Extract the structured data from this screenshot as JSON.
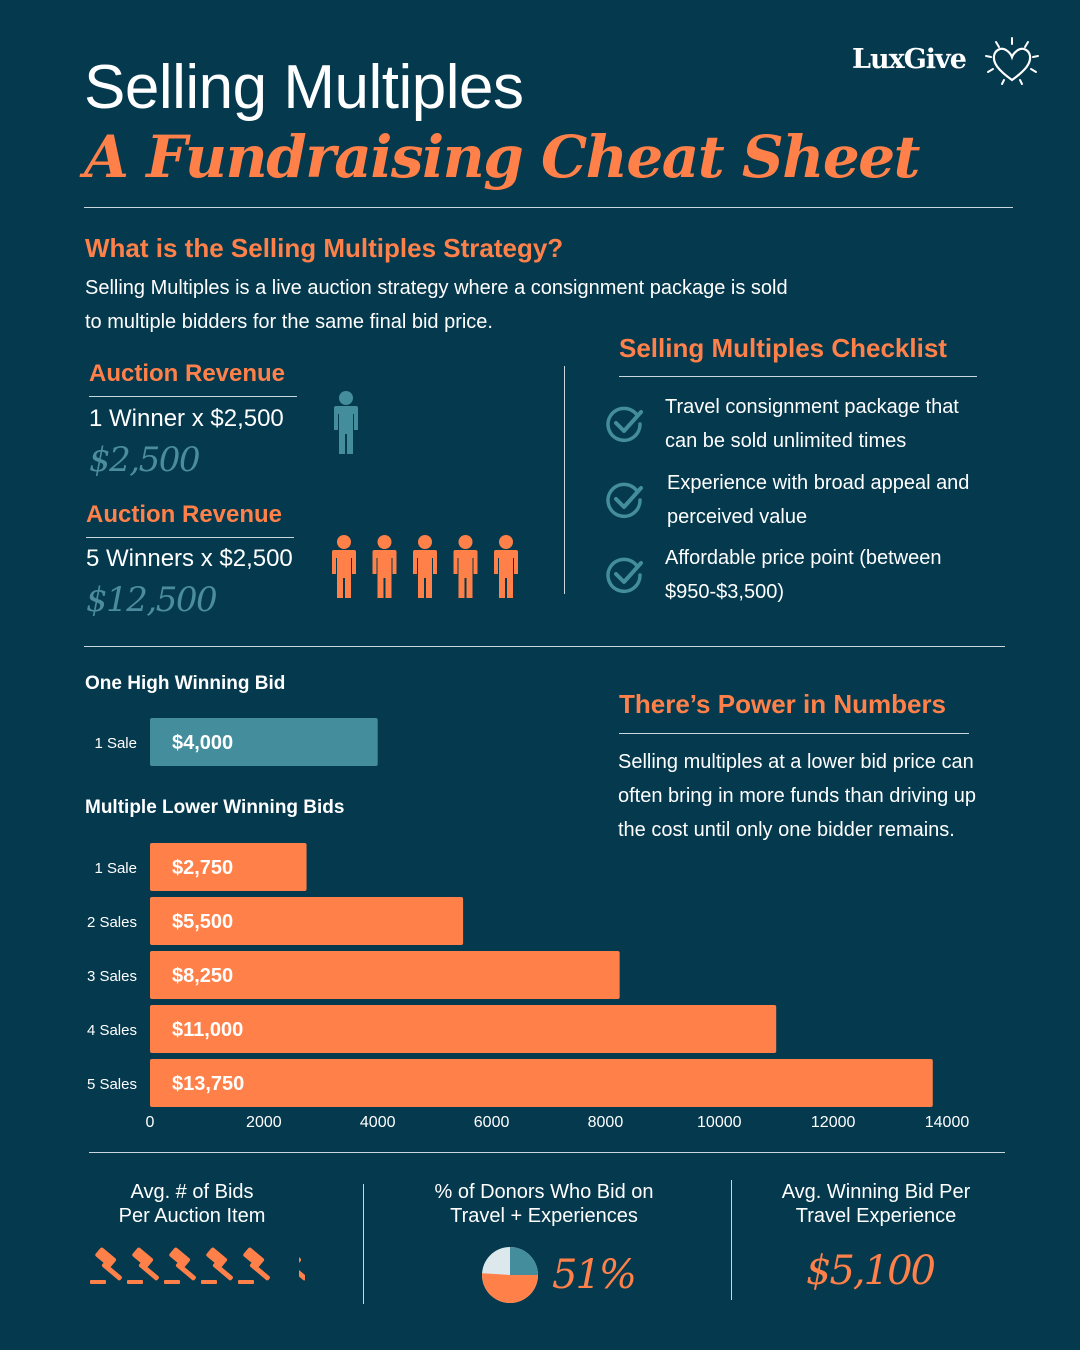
{
  "header": {
    "title_line1": "Selling Multiples",
    "title_line2": "A Fundraising Cheat Sheet",
    "logo_text": "LuxGive"
  },
  "strategy": {
    "heading": "What is the Selling Multiples Strategy?",
    "line1": "Selling Multiples is a live auction strategy where a consignment package is sold",
    "line2": "to multiple bidders for the same final bid price."
  },
  "revenue": {
    "single": {
      "title": "Auction Revenue",
      "equation": "1 Winner x $2,500",
      "total": "$2,500",
      "people": 1
    },
    "multiple": {
      "title": "Auction Revenue",
      "equation": "5 Winners x $2,500",
      "total": "$12,500",
      "people": 5
    }
  },
  "checklist": {
    "heading": "Selling Multiples Checklist",
    "items": [
      {
        "line1": "Travel consignment package that",
        "line2": "can be sold unlimited times"
      },
      {
        "line1": "Experience with broad appeal and",
        "line2": "perceived value"
      },
      {
        "line1": "Affordable price point (between",
        "line2": "$950-$3,500)"
      }
    ]
  },
  "power": {
    "heading": "There’s Power in Numbers",
    "line1": "Selling multiples at a lower bid price can",
    "line2": "often bring in more funds than driving up",
    "line3": "the cost until only one bidder remains."
  },
  "chart_data": {
    "type": "bar",
    "orientation": "horizontal",
    "xlim": [
      0,
      14000
    ],
    "x_ticks": [
      "0",
      "2000",
      "4000",
      "6000",
      "8000",
      "10000",
      "12000",
      "14000"
    ],
    "groups": [
      {
        "heading": "One High Winning Bid",
        "color": "#438d9d",
        "categories": [
          "1 Sale"
        ],
        "values": [
          4000
        ],
        "labels": [
          "$4,000"
        ]
      },
      {
        "heading": "Multiple Lower Winning Bids",
        "color": "#ff8149",
        "categories": [
          "1 Sale",
          "2 Sales",
          "3 Sales",
          "4 Sales",
          "5 Sales"
        ],
        "values": [
          2750,
          5500,
          8250,
          11000,
          13750
        ],
        "labels": [
          "$2,750",
          "$5,500",
          "$8,250",
          "$11,000",
          "$13,750"
        ]
      }
    ]
  },
  "stats": {
    "bids": {
      "line1": "Avg. # of Bids",
      "line2": "Per Auction Item",
      "gavel_count": 5.5
    },
    "donors": {
      "line1": "% of Donors Who Bid on",
      "line2": "Travel + Experiences",
      "value": "51%",
      "percent": 51
    },
    "winning": {
      "line1": "Avg. Winning Bid Per",
      "line2": "Travel Experience",
      "value": "$5,100"
    }
  },
  "colors": {
    "background": "#04394e",
    "accent": "#ff8149",
    "teal": "#438d9d",
    "rule": "#c9d6db"
  }
}
